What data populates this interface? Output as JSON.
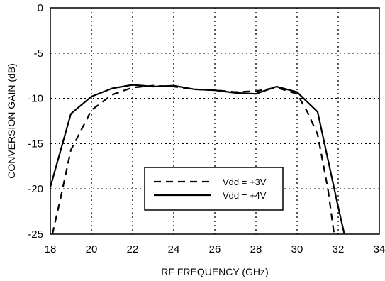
{
  "chart_data": {
    "type": "line",
    "title": "",
    "xlabel": "RF FREQUENCY (GHz)",
    "ylabel": "CONVERSION GAIN (dB)",
    "xlim": [
      18,
      34
    ],
    "ylim": [
      -25,
      0
    ],
    "xticks": [
      18,
      20,
      22,
      24,
      26,
      28,
      30,
      32,
      34
    ],
    "yticks": [
      0,
      -5,
      -10,
      -15,
      -20,
      -25
    ],
    "xtick_labels": [
      "18",
      "20",
      "22",
      "24",
      "26",
      "28",
      "30",
      "32",
      "34"
    ],
    "ytick_labels": [
      "0",
      "-5",
      "-10",
      "-15",
      "-20",
      "-25"
    ],
    "grid": true,
    "legend_position": "lower-center",
    "series": [
      {
        "name": "Vdd = +3V",
        "style": "dashed",
        "color": "#000000",
        "x": [
          18.1,
          18.5,
          19,
          20,
          21,
          22,
          23,
          24,
          25,
          26,
          27,
          28,
          29,
          30,
          30.5,
          31,
          31.5,
          31.8,
          32
        ],
        "y": [
          -25,
          -21,
          -15.7,
          -11.3,
          -9.6,
          -8.8,
          -8.6,
          -8.7,
          -9.0,
          -9.1,
          -9.3,
          -9.2,
          -8.8,
          -9.5,
          -11.5,
          -14,
          -20,
          -25,
          -25
        ]
      },
      {
        "name": "Vdd = +4V",
        "style": "solid",
        "color": "#000000",
        "x": [
          18,
          19,
          20,
          21,
          22,
          23,
          24,
          25,
          26,
          27,
          28,
          29,
          30,
          31,
          32,
          32.3
        ],
        "y": [
          -19.8,
          -11.7,
          -9.8,
          -8.9,
          -8.5,
          -8.7,
          -8.6,
          -9.0,
          -9.1,
          -9.4,
          -9.5,
          -8.7,
          -9.3,
          -11.5,
          -22,
          -25
        ]
      }
    ]
  }
}
